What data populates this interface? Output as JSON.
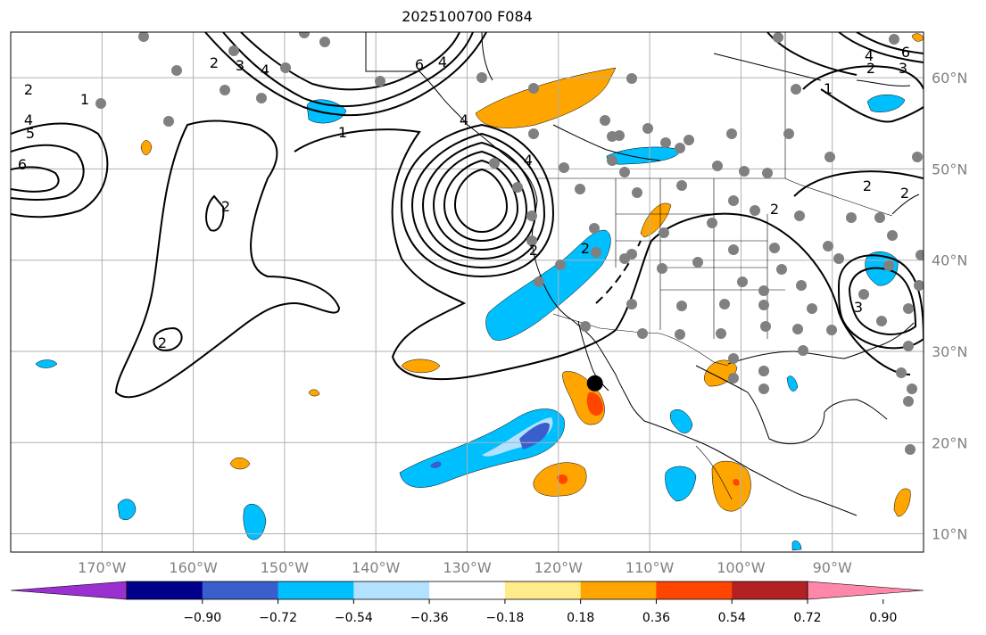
{
  "title": "2025100700 F084",
  "map": {
    "lon_range": [
      -180,
      -80
    ],
    "lat_range": [
      8,
      65
    ],
    "lon_ticks": [
      {
        "value": -170,
        "label": "170°W"
      },
      {
        "value": -160,
        "label": "160°W"
      },
      {
        "value": -150,
        "label": "150°W"
      },
      {
        "value": -140,
        "label": "140°W"
      },
      {
        "value": -130,
        "label": "130°W"
      },
      {
        "value": -120,
        "label": "120°W"
      },
      {
        "value": -110,
        "label": "110°W"
      },
      {
        "value": -100,
        "label": "100°W"
      },
      {
        "value": -90,
        "label": "90°W"
      }
    ],
    "lat_ticks": [
      {
        "value": 10,
        "label": "10°N"
      },
      {
        "value": 20,
        "label": "20°N"
      },
      {
        "value": 30,
        "label": "30°N"
      },
      {
        "value": 40,
        "label": "40°N"
      },
      {
        "value": 50,
        "label": "50°N"
      },
      {
        "value": 60,
        "label": "60°N"
      }
    ],
    "grid": true,
    "tick_color": "#808080",
    "marker": {
      "lon": -116,
      "lat": 26.5
    },
    "contour_labels": [
      "1",
      "2",
      "3",
      "4",
      "5",
      "6"
    ]
  },
  "colorbar": {
    "ticks": [
      "−0.90",
      "−0.72",
      "−0.54",
      "−0.36",
      "−0.18",
      "0.18",
      "0.36",
      "0.54",
      "0.72",
      "0.90"
    ],
    "colors": [
      "#9b30d0",
      "#00008b",
      "#3a5fcd",
      "#00bfff",
      "#b2e2ff",
      "#ffffff",
      "#ffeb8a",
      "#ffa500",
      "#ff4500",
      "#b22222",
      "#ff88aa"
    ],
    "extend": "both"
  }
}
